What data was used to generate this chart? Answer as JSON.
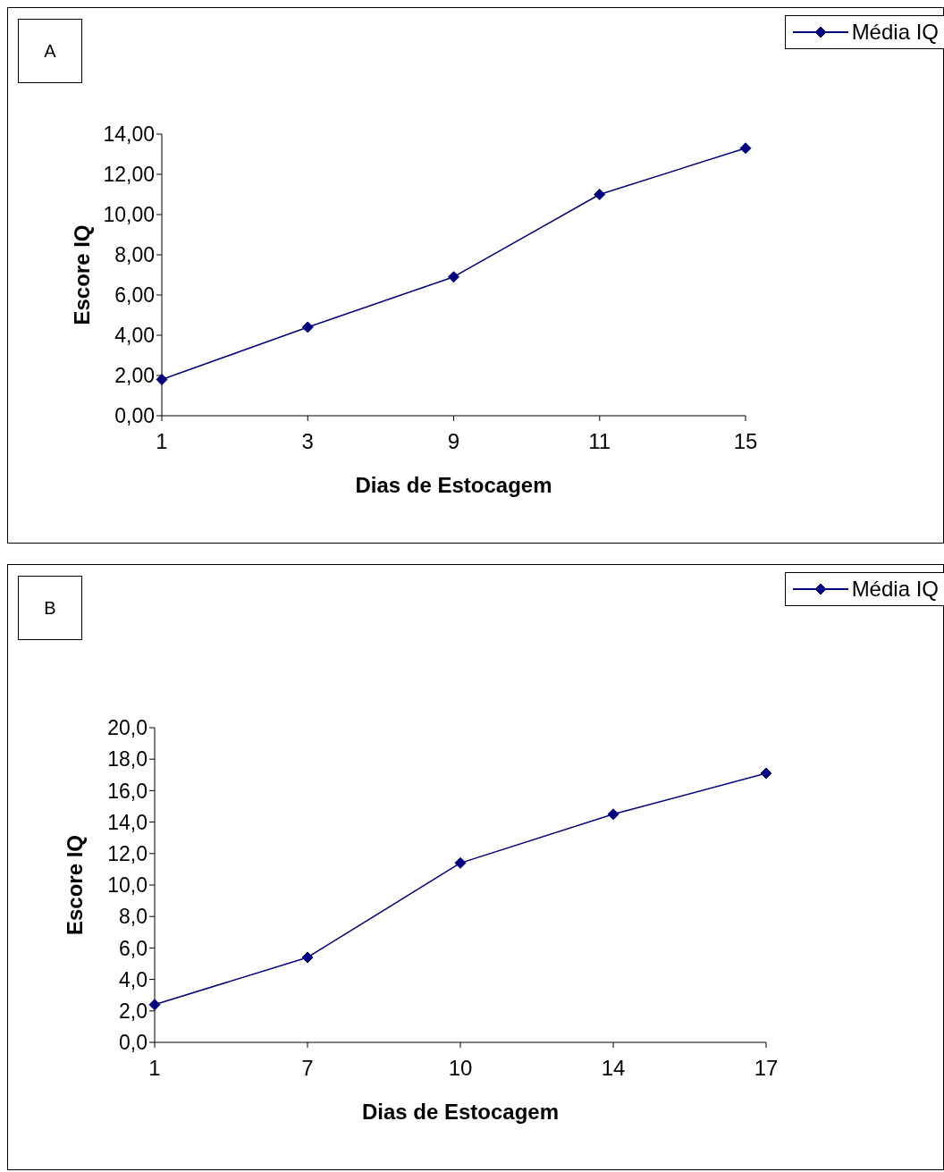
{
  "chart_data": [
    {
      "type": "line",
      "title": "A",
      "xlabel": "Dias de Estocagem",
      "ylabel": "Escore IQ",
      "categories": [
        "1",
        "3",
        "9",
        "11",
        "15"
      ],
      "series": [
        {
          "name": "Média IQ",
          "color": "#000080",
          "values": [
            1.8,
            4.4,
            6.9,
            11.0,
            13.3
          ]
        }
      ],
      "ylim": [
        0,
        14
      ],
      "yticks": [
        {
          "value": 0,
          "label": "0,00"
        },
        {
          "value": 2,
          "label": "2,00"
        },
        {
          "value": 4,
          "label": "4,00"
        },
        {
          "value": 6,
          "label": "6,00"
        },
        {
          "value": 8,
          "label": "8,00"
        },
        {
          "value": 10,
          "label": "10,00"
        },
        {
          "value": 12,
          "label": "12,00"
        },
        {
          "value": 14,
          "label": "14,00"
        }
      ],
      "grid": false,
      "legend": "top right",
      "marker": "diamond",
      "line_style": "solid"
    },
    {
      "type": "line",
      "title": "B",
      "xlabel": "Dias de Estocagem",
      "ylabel": "Escore IQ",
      "categories": [
        "1",
        "7",
        "10",
        "14",
        "17"
      ],
      "series": [
        {
          "name": "Média IQ",
          "color": "#000080",
          "values": [
            2.4,
            5.4,
            11.4,
            14.5,
            17.1
          ]
        }
      ],
      "ylim": [
        0,
        20
      ],
      "yticks": [
        {
          "value": 0,
          "label": "0,0"
        },
        {
          "value": 2,
          "label": "2,0"
        },
        {
          "value": 4,
          "label": "4,0"
        },
        {
          "value": 6,
          "label": "6,0"
        },
        {
          "value": 8,
          "label": "8,0"
        },
        {
          "value": 10,
          "label": "10,0"
        },
        {
          "value": 12,
          "label": "12,0"
        },
        {
          "value": 14,
          "label": "14,0"
        },
        {
          "value": 16,
          "label": "16,0"
        },
        {
          "value": 18,
          "label": "18,0"
        },
        {
          "value": 20,
          "label": "20,0"
        }
      ],
      "grid": false,
      "legend": "top right",
      "marker": "diamond",
      "line_style": "solid"
    }
  ]
}
